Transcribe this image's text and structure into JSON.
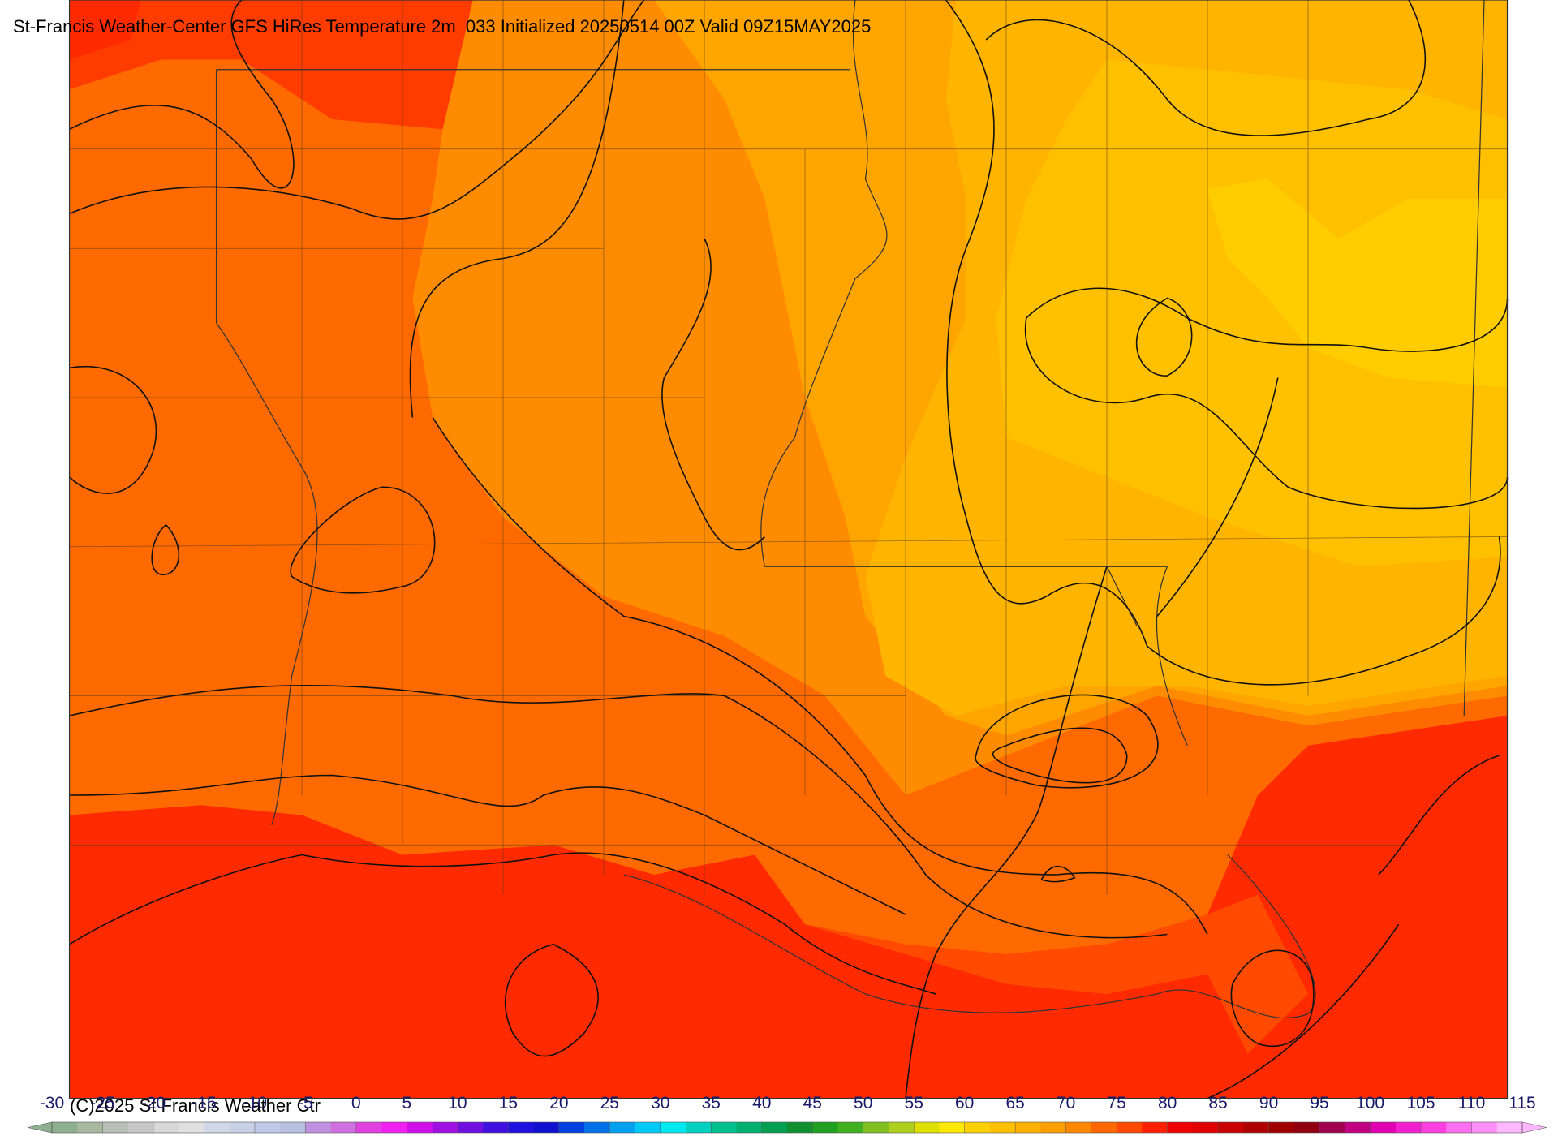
{
  "title": "St-Francis Weather-Center GFS HiRes Temperature 2m  033 Initialized 20250514 00Z Valid 09Z15MAY2025",
  "copyright": "(C)2025 St Francis Weather Ctr",
  "colorbar": {
    "ticks": [
      -30,
      -25,
      -20,
      -15,
      -10,
      -5,
      0,
      5,
      10,
      15,
      20,
      25,
      30,
      35,
      40,
      45,
      50,
      55,
      60,
      65,
      70,
      75,
      80,
      85,
      90,
      95,
      100,
      105,
      110,
      115
    ],
    "colors": [
      "#8fb08f",
      "#a8b8a0",
      "#b8c0b8",
      "#c8c8c8",
      "#d8d8d8",
      "#e0e0e0",
      "#d0d8e8",
      "#c8d0e8",
      "#c0c8e8",
      "#b8c0e0",
      "#c090e0",
      "#d070e0",
      "#e040e0",
      "#f020f0",
      "#d010e8",
      "#a010e0",
      "#7010e0",
      "#4010e0",
      "#2010e0",
      "#1010d0",
      "#0040e0",
      "#0070e8",
      "#00a0f0",
      "#00c8f8",
      "#00e8f0",
      "#00d0c0",
      "#00c090",
      "#00b070",
      "#00a050",
      "#109030",
      "#20a020",
      "#40b020",
      "#80c020",
      "#b0d020",
      "#e0e000",
      "#ffe800",
      "#ffd000",
      "#ffc000",
      "#ffb000",
      "#ffa000",
      "#ff8800",
      "#ff6800",
      "#ff4800",
      "#ff2000",
      "#f00000",
      "#e00000",
      "#c80000",
      "#b00000",
      "#a00000",
      "#900010",
      "#a00050",
      "#c00080",
      "#e000b0",
      "#f020d0",
      "#ff40e0",
      "#ff70f0",
      "#ff90f8",
      "#ffb8ff"
    ]
  }
}
